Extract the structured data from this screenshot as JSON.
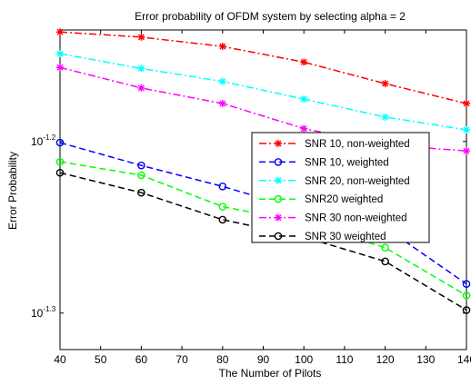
{
  "chart_data": {
    "type": "line",
    "title": "Error probability of OFDM system by selecting alpha = 2",
    "xlabel": "The Number of Pilots",
    "ylabel": "Error Probability",
    "x": [
      40,
      60,
      80,
      100,
      120,
      140
    ],
    "xlim": [
      40,
      140
    ],
    "xticks": [
      40,
      50,
      60,
      70,
      80,
      90,
      100,
      110,
      120,
      130,
      140
    ],
    "xtick_labels": [
      "40",
      "50",
      "60",
      "70",
      "80",
      "90",
      "100",
      "110",
      "120",
      "130",
      "140"
    ],
    "yscale": "log",
    "ylim": [
      0.0477,
      0.0733
    ],
    "yticks": [
      0.0631,
      0.0501
    ],
    "ytick_labels": [
      {
        "base": "10",
        "exp": "-1.2"
      },
      {
        "base": "10",
        "exp": "-1.3"
      }
    ],
    "grid": false,
    "legend_position": "center-right",
    "series": [
      {
        "name": "SNR 10, non-weighted",
        "color": "#ff0000",
        "dash": "dashdot",
        "marker": "star",
        "values": [
          0.0731,
          0.0726,
          0.0717,
          0.0702,
          0.0682,
          0.0664
        ]
      },
      {
        "name": "SNR 10, weighted",
        "color": "#0000ff",
        "dash": "dashed",
        "marker": "circle",
        "values": [
          0.063,
          0.0611,
          0.0594,
          0.0575,
          0.0562,
          0.0521
        ]
      },
      {
        "name": "SNR 20, non-weighted",
        "color": "#00ffff",
        "dash": "dashdot",
        "marker": "star",
        "values": [
          0.071,
          0.0696,
          0.0684,
          0.0668,
          0.0652,
          0.0641
        ]
      },
      {
        "name": "SNR20 weighted",
        "color": "#00ff00",
        "dash": "dashed",
        "marker": "circle",
        "values": [
          0.0614,
          0.0603,
          0.0578,
          0.0566,
          0.0547,
          0.0513
        ]
      },
      {
        "name": "SNR 30 non-weighted",
        "color": "#ff00ff",
        "dash": "dashdot",
        "marker": "star",
        "values": [
          0.0697,
          0.0678,
          0.0664,
          0.0642,
          0.0628,
          0.0623
        ]
      },
      {
        "name": "SNR 30 weighted",
        "color": "#000000",
        "dash": "dashed",
        "marker": "circle",
        "values": [
          0.0605,
          0.0589,
          0.0568,
          0.0555,
          0.0537,
          0.0503
        ]
      }
    ]
  }
}
